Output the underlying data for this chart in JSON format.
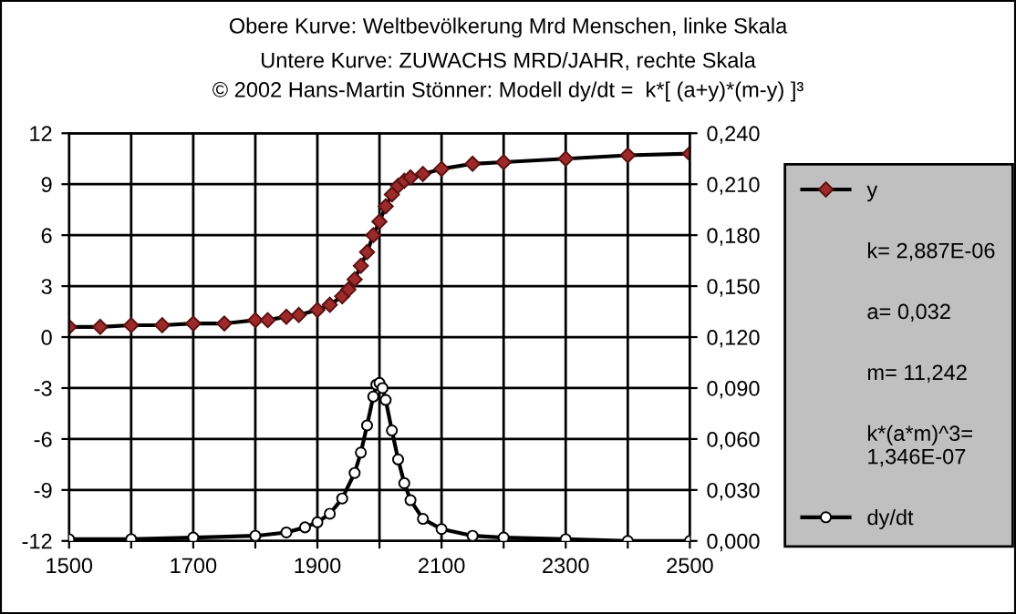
{
  "chart_data": {
    "type": "line",
    "title": "Obere Kurve: Weltbevölkerung Mrd Menschen, linke Skala",
    "subtitle": "Untere Kurve: ZUWACHS MRD/JAHR, rechte Skala\n© 2002 Hans-Martin Stönner: Modell dy/dt =  k*[ (a+y)*(m-y) ]³",
    "annotations": [
      "k= 2,887E-06",
      "a= 0,032",
      "m= 11,242",
      "k*(a*m)^3=\n1,346E-07"
    ],
    "xlim": [
      1500,
      2500
    ],
    "xticks": [
      1500,
      {
        "value": 1600,
        "label": null
      },
      1700,
      {
        "value": 1800,
        "label": null
      },
      1900,
      {
        "value": 2000,
        "label": null
      },
      2100,
      {
        "value": 2200,
        "label": null
      },
      2300,
      {
        "value": 2400,
        "label": null
      },
      2500
    ],
    "ylim": [
      -12,
      12
    ],
    "yticks": [
      -12,
      -9,
      -6,
      -3,
      0,
      3,
      6,
      9,
      12
    ],
    "y2lim": [
      0,
      0.24
    ],
    "y2ticks": [
      {
        "value": 0,
        "label": "0,000"
      },
      {
        "value": 0.03,
        "label": "0,030"
      },
      {
        "value": 0.06,
        "label": "0,060"
      },
      {
        "value": 0.09,
        "label": "0,090"
      },
      {
        "value": 0.12,
        "label": "0,120"
      },
      {
        "value": 0.15,
        "label": "0,150"
      },
      {
        "value": 0.18,
        "label": "0,180"
      },
      {
        "value": 0.21,
        "label": "0,210"
      },
      {
        "value": 0.24,
        "label": "0,240"
      }
    ],
    "grid": true,
    "legend": "right",
    "line_style": "solid",
    "series": [
      {
        "name": "y",
        "color": "#9c2a2a",
        "marker": "diamond",
        "x": [
          1500,
          1550,
          1600,
          1650,
          1700,
          1750,
          1800,
          1820,
          1850,
          1870,
          1900,
          1920,
          1940,
          1950,
          1960,
          1970,
          1980,
          1990,
          2000,
          2010,
          2020,
          2030,
          2040,
          2050,
          2070,
          2100,
          2150,
          2200,
          2300,
          2400,
          2500
        ],
        "values": [
          0.6,
          0.6,
          0.7,
          0.7,
          0.8,
          0.8,
          1.0,
          1.0,
          1.2,
          1.3,
          1.6,
          1.9,
          2.4,
          2.8,
          3.4,
          4.2,
          5.0,
          6.0,
          6.8,
          7.7,
          8.4,
          8.9,
          9.2,
          9.4,
          9.6,
          9.9,
          10.2,
          10.3,
          10.5,
          10.7,
          10.8
        ]
      },
      {
        "name": "dy/dt",
        "color": "#ffffff",
        "axis": "y2",
        "marker": "circle",
        "x": [
          1500,
          1600,
          1700,
          1800,
          1850,
          1880,
          1900,
          1920,
          1940,
          1960,
          1970,
          1980,
          1990,
          1995,
          2000,
          2005,
          2010,
          2020,
          2030,
          2040,
          2050,
          2070,
          2100,
          2150,
          2200,
          2300,
          2400,
          2500
        ],
        "values": [
          0.001,
          0.001,
          0.002,
          0.003,
          0.005,
          0.008,
          0.011,
          0.016,
          0.025,
          0.04,
          0.052,
          0.068,
          0.085,
          0.092,
          0.093,
          0.09,
          0.083,
          0.065,
          0.048,
          0.034,
          0.024,
          0.013,
          0.007,
          0.003,
          0.002,
          0.001,
          0,
          0
        ]
      }
    ]
  }
}
